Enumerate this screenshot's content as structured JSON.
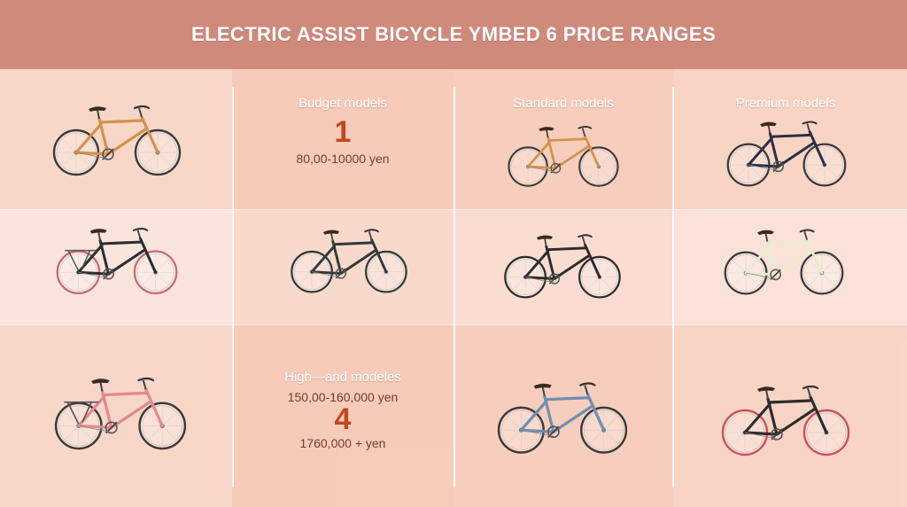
{
  "title": "ELECTRIC ASSIST BICYCLE YMBED 6 PRICE RANGES",
  "columns": [
    {
      "label": "Budget models",
      "number": "1",
      "price": "80,00-10000 yen"
    },
    {
      "label": "Standard models"
    },
    {
      "label": "Premium models"
    }
  ],
  "high_end": {
    "label": "High—and modeles",
    "price_range": "150,00-160,000 yen",
    "number": "4",
    "price_top": "1760,000 + yen"
  },
  "bikes": [
    {
      "frame": "#d4924a",
      "tire": "#3a3a3a",
      "rack": false,
      "basket": false
    },
    {
      "frame": "#d4924a",
      "tire": "#3a3a3a",
      "rack": false,
      "basket": false
    },
    {
      "frame": "#2b2f45",
      "tire": "#3a3a3a",
      "rack": false,
      "basket": false
    },
    {
      "frame": "#2a2d33",
      "tire": "#c46a77",
      "rack": true,
      "basket": false
    },
    {
      "frame": "#2f3b3a",
      "tire": "#2f3b3a",
      "rack": false,
      "basket": false
    },
    {
      "frame": "#2c2c2c",
      "tire": "#2c2c2c",
      "rack": false,
      "basket": false
    },
    {
      "frame": "#e8ecd2",
      "tire": "#3a3a3a",
      "rack": false,
      "basket": false
    },
    {
      "frame": "#e38a8f",
      "tire": "#3a3a3a",
      "rack": true,
      "basket": false
    },
    {
      "frame": "#6f8fb0",
      "tire": "#3a3a3a",
      "rack": false,
      "basket": false
    },
    {
      "frame": "#2c2c2c",
      "tire": "#c9525c",
      "rack": false,
      "basket": false
    }
  ]
}
